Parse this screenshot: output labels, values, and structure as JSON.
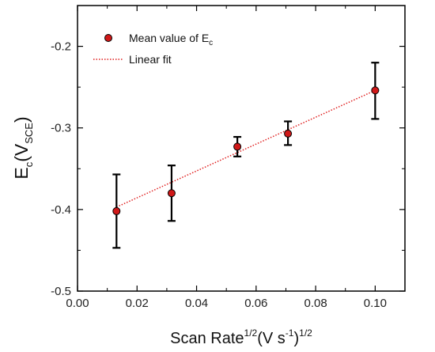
{
  "chart_data": {
    "type": "scatter",
    "xlabel": {
      "base": "Scan Rate",
      "sup1": "1/2",
      "mid": "(V s",
      "sup2": "-1",
      "end": ")",
      "sup3": "1/2"
    },
    "ylabel": {
      "base": "E",
      "sub1": "c",
      "mid": "(V",
      "sub2": "SCE",
      "end": ")"
    },
    "xlim": [
      0.0,
      0.11
    ],
    "ylim": [
      -0.5,
      -0.15
    ],
    "x_ticks": [
      0.0,
      0.02,
      0.04,
      0.06,
      0.08,
      0.1
    ],
    "x_tick_labels": [
      "0.00",
      "0.02",
      "0.04",
      "0.06",
      "0.08",
      "0.10"
    ],
    "y_ticks": [
      -0.5,
      -0.4,
      -0.3,
      -0.2
    ],
    "y_tick_labels": [
      "-0.5",
      "-0.4",
      "-0.3",
      "-0.2"
    ],
    "grid": false,
    "legend_placement": "top-left",
    "series": [
      {
        "name": "Mean value of E",
        "name_sub": "c",
        "kind": "points_with_error_bars",
        "color": "#d01818",
        "x": [
          0.0131,
          0.0316,
          0.0537,
          0.0707,
          0.1
        ],
        "y": [
          -0.402,
          -0.38,
          -0.323,
          -0.307,
          -0.254
        ],
        "err_low": [
          -0.447,
          -0.414,
          -0.335,
          -0.321,
          -0.289
        ],
        "err_high": [
          -0.357,
          -0.346,
          -0.311,
          -0.292,
          -0.22
        ]
      },
      {
        "name": "Linear fit",
        "kind": "dotted_line",
        "color": "#e02020",
        "x": [
          0.0131,
          0.1
        ],
        "y": [
          -0.397,
          -0.254
        ]
      }
    ]
  }
}
